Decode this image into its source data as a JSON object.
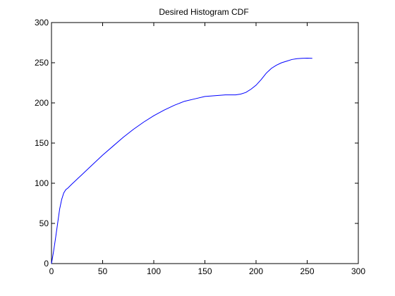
{
  "chart_data": {
    "type": "line",
    "title": "Desired Histogram CDF",
    "xlabel": "",
    "ylabel": "",
    "xlim": [
      0,
      300
    ],
    "ylim": [
      0,
      300
    ],
    "xticks": [
      0,
      50,
      100,
      150,
      200,
      250,
      300
    ],
    "yticks": [
      0,
      50,
      100,
      150,
      200,
      250,
      300
    ],
    "grid": false,
    "line_color": "#0000ff",
    "series": [
      {
        "x": [
          0,
          2,
          4,
          6,
          8,
          10,
          12,
          14,
          16,
          20,
          25,
          30,
          40,
          50,
          60,
          70,
          80,
          90,
          100,
          110,
          120,
          130,
          140,
          150,
          160,
          170,
          180,
          185,
          190,
          195,
          200,
          205,
          210,
          215,
          220,
          225,
          230,
          235,
          240,
          245,
          250,
          255
        ],
        "y": [
          0,
          15,
          32,
          50,
          68,
          80,
          88,
          92,
          94,
          99,
          105,
          111,
          123,
          135,
          146,
          157,
          167,
          176,
          184,
          191,
          197,
          202,
          205,
          208,
          209,
          210,
          210,
          211,
          213,
          217,
          222,
          229,
          237,
          243,
          247,
          250,
          252,
          254,
          255,
          255.5,
          255.7,
          255.5
        ]
      }
    ]
  }
}
